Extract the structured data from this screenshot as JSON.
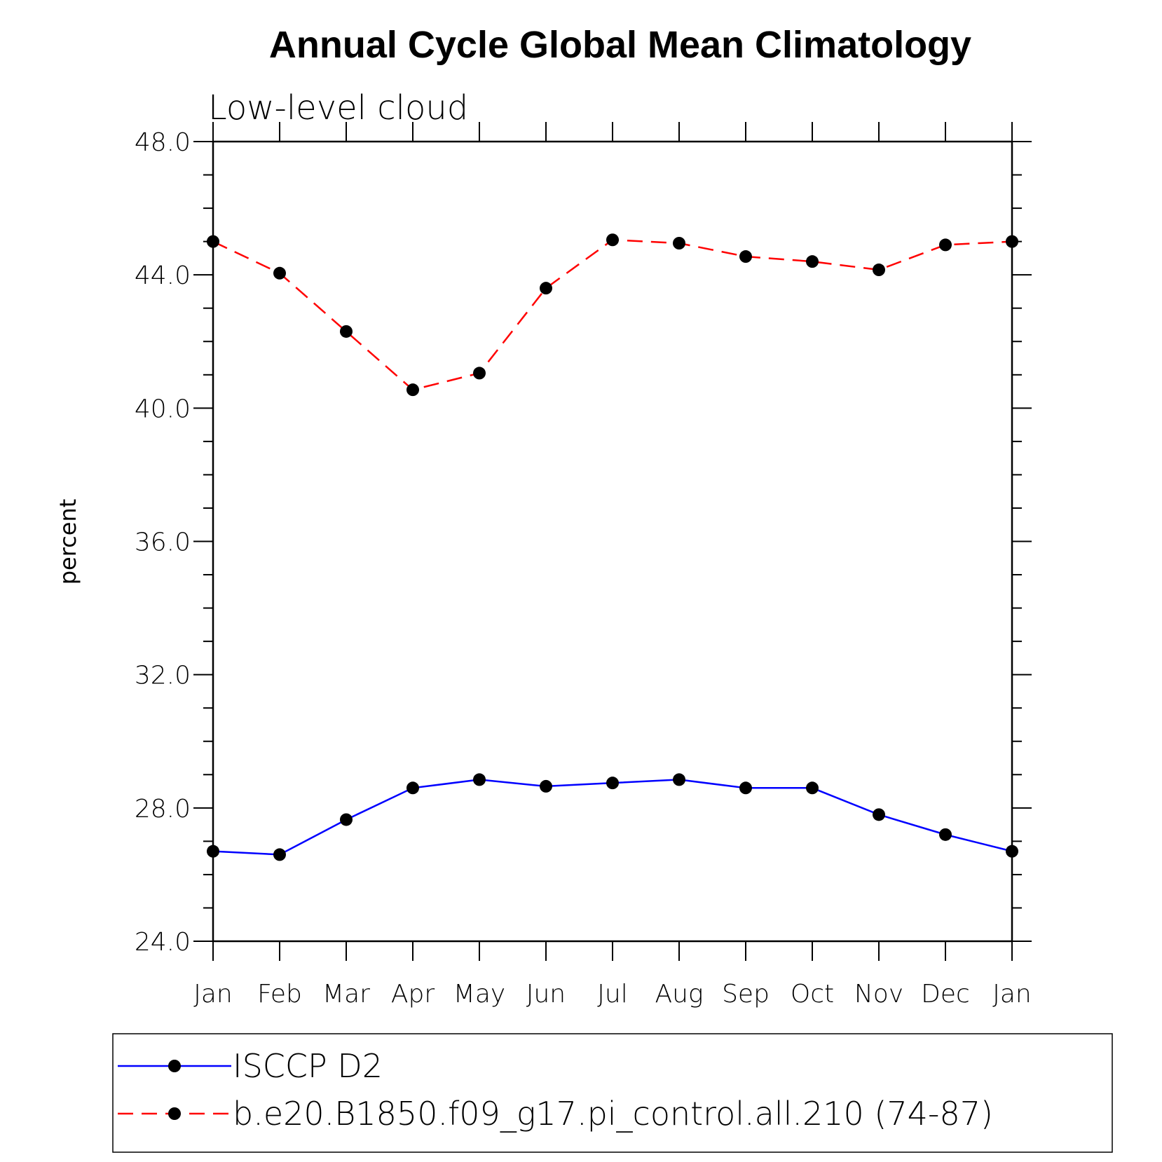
{
  "chart_data": {
    "type": "line",
    "title": "Annual Cycle Global Mean Climatology",
    "subtitle": "Low-level cloud",
    "xlabel": "",
    "ylabel": "percent",
    "ylim": [
      24.0,
      48.0
    ],
    "yticks": [
      "24.0",
      "28.0",
      "32.0",
      "36.0",
      "40.0",
      "44.0",
      "48.0"
    ],
    "categories": [
      "Jan",
      "Feb",
      "Mar",
      "Apr",
      "May",
      "Jun",
      "Jul",
      "Aug",
      "Sep",
      "Oct",
      "Nov",
      "Dec",
      "Jan"
    ],
    "grid": false,
    "legend": "bottom",
    "series": [
      {
        "name": "ISCCP D2",
        "color": "#0000ff",
        "dash": "solid",
        "values": [
          26.7,
          26.6,
          27.65,
          28.6,
          28.85,
          28.65,
          28.75,
          28.85,
          28.6,
          28.6,
          27.8,
          27.2,
          26.7
        ]
      },
      {
        "name": "b.e20.B1850.f09_g17.pi_control.all.210 (74-87)",
        "color": "#ff0000",
        "dash": "dashed",
        "values": [
          45.0,
          44.05,
          42.3,
          40.55,
          41.05,
          43.6,
          45.05,
          44.95,
          44.55,
          44.4,
          44.15,
          44.9,
          45.0
        ]
      }
    ]
  }
}
